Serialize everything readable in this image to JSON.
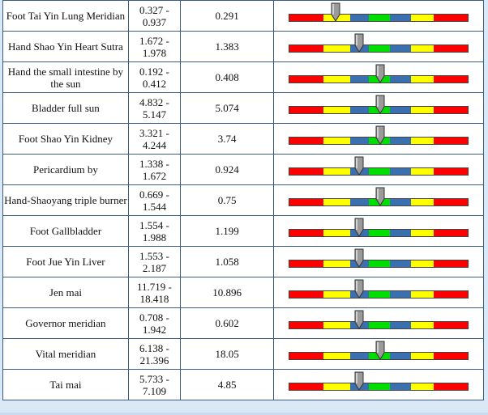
{
  "colors": {
    "red": "#ff0000",
    "yellow": "#ffff00",
    "blue": "#3a6fb0",
    "green": "#00dd00",
    "pointer": "#9a9a9a",
    "border": "#3a5d86"
  },
  "rows": [
    {
      "name": "Foot Tai Yin Lung Meridian",
      "range_low": "0.327 -",
      "range_high": "0.937",
      "value": "0.291",
      "level": 0.26
    },
    {
      "name": "Hand Shao Yin Heart Sutra",
      "range_low": "1.672 -",
      "range_high": "1.978",
      "value": "1.383",
      "level": 0.39
    },
    {
      "name": "Hand the small intestine by the sun",
      "range_low": "0.192 -",
      "range_high": "0.412",
      "value": "0.408",
      "level": 0.51
    },
    {
      "name": "Bladder full sun",
      "range_low": "4.832 -",
      "range_high": "5.147",
      "value": "5.074",
      "level": 0.51
    },
    {
      "name": "Foot Shao Yin Kidney",
      "range_low": "3.321 -",
      "range_high": "4.244",
      "value": "3.74",
      "level": 0.51
    },
    {
      "name": "Pericardium by",
      "range_low": "1.338 -",
      "range_high": "1.672",
      "value": "0.924",
      "level": 0.39
    },
    {
      "name": "Hand-Shaoyang triple burner",
      "range_low": "0.669 -",
      "range_high": "1.544",
      "value": "0.75",
      "level": 0.51
    },
    {
      "name": "Foot Gallbladder",
      "range_low": "1.554 -",
      "range_high": "1.988",
      "value": "1.199",
      "level": 0.39
    },
    {
      "name": "Foot Jue Yin Liver",
      "range_low": "1.553 -",
      "range_high": "2.187",
      "value": "1.058",
      "level": 0.39
    },
    {
      "name": "Jen mai",
      "range_low": "11.719 -",
      "range_high": "18.418",
      "value": "10.896",
      "level": 0.39
    },
    {
      "name": "Governor meridian",
      "range_low": "0.708 -",
      "range_high": "1.942",
      "value": "0.602",
      "level": 0.39
    },
    {
      "name": "Vital meridian",
      "range_low": "6.138 -",
      "range_high": "21.396",
      "value": "18.05",
      "level": 0.51
    },
    {
      "name": "Tai mai",
      "range_low": "5.733 -",
      "range_high": "7.109",
      "value": "4.85",
      "level": 0.39
    }
  ]
}
